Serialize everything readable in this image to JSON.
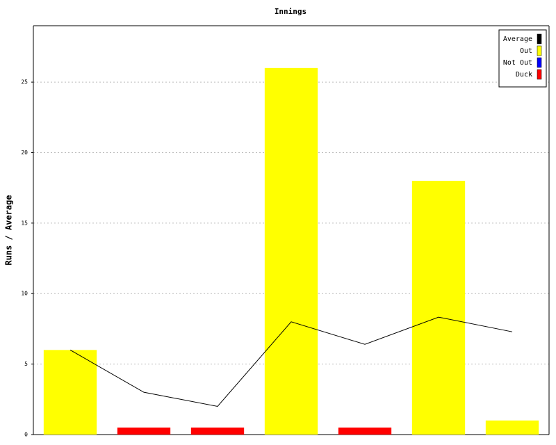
{
  "chart_data": {
    "type": "bar",
    "title": "Innings",
    "y_label": "Runs / Average",
    "categories": [
      null,
      null,
      null,
      null,
      null,
      null,
      null
    ],
    "series": [
      {
        "name": "Average",
        "color": "#000000",
        "type": "line",
        "values": [
          6,
          3,
          2,
          8,
          6.4,
          8.33,
          7.29
        ]
      },
      {
        "name": "Out",
        "color": "#ffff00",
        "type": "bar",
        "values": [
          6,
          null,
          null,
          26,
          null,
          18,
          1
        ]
      },
      {
        "name": "Not Out",
        "color": "#0000ff",
        "type": "bar",
        "values": [
          null,
          null,
          null,
          null,
          null,
          null,
          null
        ]
      },
      {
        "name": "Duck",
        "color": "#ff0000",
        "type": "bar",
        "values": [
          null,
          0.5,
          0.5,
          null,
          0.5,
          null,
          null
        ]
      }
    ],
    "ylim": [
      0,
      29
    ],
    "yticks": [
      0,
      5,
      10,
      15,
      20,
      25
    ],
    "grid": true,
    "legend": "top-right"
  }
}
